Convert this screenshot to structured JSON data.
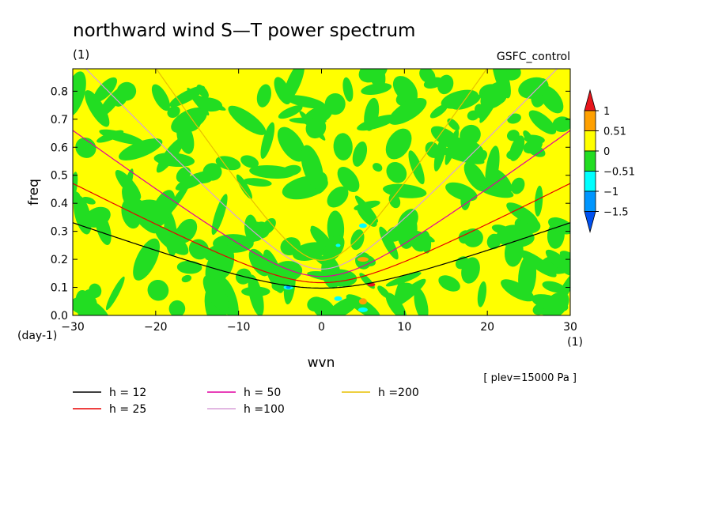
{
  "chart_data": {
    "type": "heatmap",
    "title": "northward wind S—T power spectrum",
    "units_label": "(1)",
    "case_name": "GSFC_control",
    "xlabel": "wvn",
    "ylabel": "freq",
    "x_units": "(1)",
    "y_units": "(day-1)",
    "xlim": [
      -30,
      30
    ],
    "ylim": [
      0,
      0.88
    ],
    "x_ticks": [
      -30,
      -20,
      -10,
      0,
      10,
      20,
      30
    ],
    "y_ticks": [
      0.0,
      0.1,
      0.2,
      0.3,
      0.4,
      0.5,
      0.6,
      0.7,
      0.8
    ],
    "level_note": "[ plev=15000 Pa ]",
    "colorbar": {
      "levels": [
        "1",
        "0.51",
        "0",
        "−0.51",
        "−1",
        "−1.5"
      ],
      "colors": [
        "#e8161c",
        "#ffa000",
        "#ffff00",
        "#22dd22",
        "#00ffff",
        "#0096ff",
        "#0050f0"
      ]
    },
    "field_note": "noise field mostly between -0.51 and 0.51 with isolated orange and cyan spots",
    "dispersion_curves": [
      {
        "label": "h = 12",
        "h": 12,
        "color": "#000000"
      },
      {
        "label": "h = 25",
        "h": 25,
        "color": "#e80000"
      },
      {
        "label": "h = 50",
        "h": 50,
        "color": "#e000a0"
      },
      {
        "label": "h =100",
        "h": 100,
        "color": "#d8a0d8"
      },
      {
        "label": "h =200",
        "h": 200,
        "color": "#e8c000"
      }
    ]
  }
}
